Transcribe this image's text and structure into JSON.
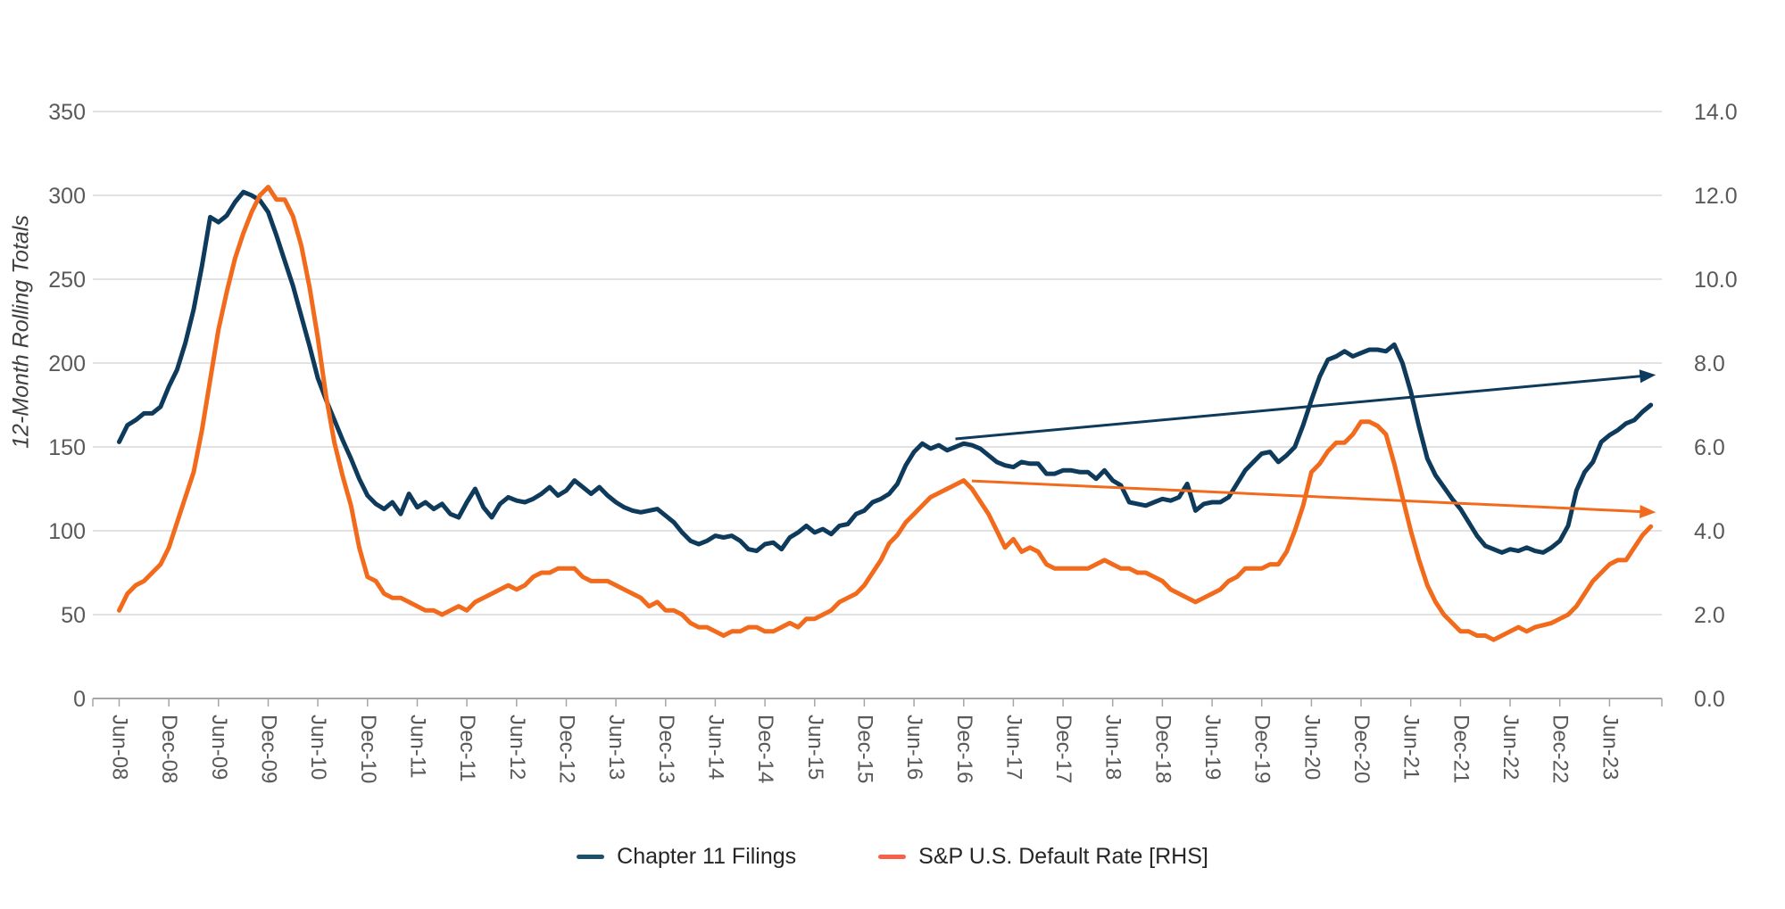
{
  "chart_data": {
    "type": "line",
    "title": "",
    "grid": true,
    "legend_position": "bottom-center",
    "left_axis": {
      "label": "12-Month Rolling Totals",
      "min": 0,
      "max": 350,
      "step": 50,
      "ticks": [
        "350",
        "300",
        "250",
        "200",
        "150",
        "100",
        "50",
        "0"
      ]
    },
    "right_axis": {
      "min": 0,
      "max": 14,
      "step": 2,
      "ticks": [
        "14.0",
        "12.0",
        "10.0",
        "8.0",
        "6.0",
        "4.0",
        "2.0",
        "0.0"
      ]
    },
    "x_axis": {
      "start": "Jun-08",
      "months_per_tick": 6,
      "tick_labels": [
        "Jun-08",
        "Dec-08",
        "Jun-09",
        "Dec-09",
        "Jun-10",
        "Dec-10",
        "Jun-11",
        "Dec-11",
        "Jun-12",
        "Dec-12",
        "Jun-13",
        "Dec-13",
        "Jun-14",
        "Dec-14",
        "Jun-15",
        "Dec-15",
        "Jun-16",
        "Dec-16",
        "Jun-17",
        "Dec-17",
        "Jun-18",
        "Dec-18",
        "Jun-19",
        "Dec-19",
        "Jun-20",
        "Dec-20",
        "Jun-21",
        "Dec-21",
        "Jun-22",
        "Dec-22",
        "Jun-23"
      ]
    },
    "series": [
      {
        "name": "Chapter 11 Filings",
        "axis": "left",
        "color": "#0e3a5c",
        "start": "Jun-08",
        "freq": "monthly",
        "values": [
          153,
          163,
          166,
          170,
          170,
          174,
          186,
          196,
          212,
          232,
          258,
          287,
          284,
          288,
          296,
          302,
          300,
          297,
          290,
          276,
          261,
          246,
          228,
          210,
          191,
          178,
          166,
          154,
          143,
          131,
          121,
          116,
          113,
          117,
          110,
          122,
          114,
          117,
          113,
          116,
          110,
          108,
          117,
          125,
          114,
          108,
          116,
          120,
          118,
          117,
          119,
          122,
          126,
          121,
          124,
          130,
          126,
          122,
          126,
          121,
          117,
          114,
          112,
          111,
          112,
          113,
          109,
          105,
          99,
          94,
          92,
          94,
          97,
          96,
          97,
          94,
          89,
          88,
          92,
          93,
          89,
          96,
          99,
          103,
          99,
          101,
          98,
          103,
          104,
          110,
          112,
          117,
          119,
          122,
          128,
          139,
          147,
          152,
          149,
          151,
          148,
          150,
          152,
          151,
          149,
          145,
          141,
          139,
          138,
          141,
          140,
          140,
          134,
          134,
          136,
          136,
          135,
          135,
          131,
          136,
          130,
          127,
          117,
          116,
          115,
          117,
          119,
          118,
          120,
          128,
          112,
          116,
          117,
          117,
          120,
          128,
          136,
          141,
          146,
          147,
          141,
          145,
          150,
          163,
          178,
          192,
          202,
          204,
          207,
          204,
          206,
          208,
          208,
          207,
          211,
          200,
          183,
          162,
          143,
          133,
          126,
          119,
          113,
          105,
          97,
          91,
          89,
          87,
          89,
          88,
          90,
          88,
          87,
          90,
          94,
          103,
          124,
          135,
          141,
          153,
          157,
          160,
          164,
          166,
          171,
          175
        ]
      },
      {
        "name": "S&P U.S. Default Rate [RHS]",
        "axis": "right",
        "color": "#f26a1b",
        "start": "Jun-08",
        "freq": "monthly",
        "values": [
          2.1,
          2.5,
          2.7,
          2.8,
          3.0,
          3.2,
          3.6,
          4.2,
          4.8,
          5.4,
          6.4,
          7.6,
          8.8,
          9.7,
          10.5,
          11.1,
          11.6,
          12.0,
          12.2,
          11.9,
          11.9,
          11.5,
          10.8,
          9.8,
          8.6,
          7.2,
          6.1,
          5.3,
          4.6,
          3.6,
          2.9,
          2.8,
          2.5,
          2.4,
          2.4,
          2.3,
          2.2,
          2.1,
          2.1,
          2.0,
          2.1,
          2.2,
          2.1,
          2.3,
          2.4,
          2.5,
          2.6,
          2.7,
          2.6,
          2.7,
          2.9,
          3.0,
          3.0,
          3.1,
          3.1,
          3.1,
          2.9,
          2.8,
          2.8,
          2.8,
          2.7,
          2.6,
          2.5,
          2.4,
          2.2,
          2.3,
          2.1,
          2.1,
          2.0,
          1.8,
          1.7,
          1.7,
          1.6,
          1.5,
          1.6,
          1.6,
          1.7,
          1.7,
          1.6,
          1.6,
          1.7,
          1.8,
          1.7,
          1.9,
          1.9,
          2.0,
          2.1,
          2.3,
          2.4,
          2.5,
          2.7,
          3.0,
          3.3,
          3.7,
          3.9,
          4.2,
          4.4,
          4.6,
          4.8,
          4.9,
          5.0,
          5.1,
          5.2,
          5.0,
          4.7,
          4.4,
          4.0,
          3.6,
          3.8,
          3.5,
          3.6,
          3.5,
          3.2,
          3.1,
          3.1,
          3.1,
          3.1,
          3.1,
          3.2,
          3.3,
          3.2,
          3.1,
          3.1,
          3.0,
          3.0,
          2.9,
          2.8,
          2.6,
          2.5,
          2.4,
          2.3,
          2.4,
          2.5,
          2.6,
          2.8,
          2.9,
          3.1,
          3.1,
          3.1,
          3.2,
          3.2,
          3.5,
          4.0,
          4.6,
          5.4,
          5.6,
          5.9,
          6.1,
          6.1,
          6.3,
          6.6,
          6.6,
          6.5,
          6.3,
          5.6,
          4.8,
          4.0,
          3.3,
          2.7,
          2.3,
          2.0,
          1.8,
          1.6,
          1.6,
          1.5,
          1.5,
          1.4,
          1.5,
          1.6,
          1.7,
          1.6,
          1.7,
          1.75,
          1.8,
          1.9,
          2.0,
          2.2,
          2.5,
          2.8,
          3.0,
          3.2,
          3.3,
          3.3,
          3.6,
          3.9,
          4.1
        ]
      }
    ],
    "annotations": [
      {
        "type": "trend-arrow",
        "name": "chapter11-trend-arrow",
        "axis": "left",
        "color": "#0e3a5c",
        "from_month_index": 101,
        "from_value": 154.8,
        "to_month_index": 185.6,
        "to_value": 193
      },
      {
        "type": "trend-arrow",
        "name": "default-rate-trend-arrow",
        "axis": "right",
        "color": "#f26a1b",
        "from_month_index": 103,
        "from_value": 5.19,
        "to_month_index": 185.6,
        "to_value": 4.44
      }
    ],
    "legend": [
      {
        "label": "Chapter 11 Filings",
        "color": "#1d4f6e"
      },
      {
        "label": "S&P U.S. Default Rate [RHS]",
        "color": "#f7614b"
      }
    ],
    "style_colors": {
      "gridline": "#d9d9d9",
      "axis_line": "#a6a6a6",
      "tick_text": "#595959",
      "legend_text": "#262626",
      "axis_title_text": "#404040"
    }
  }
}
